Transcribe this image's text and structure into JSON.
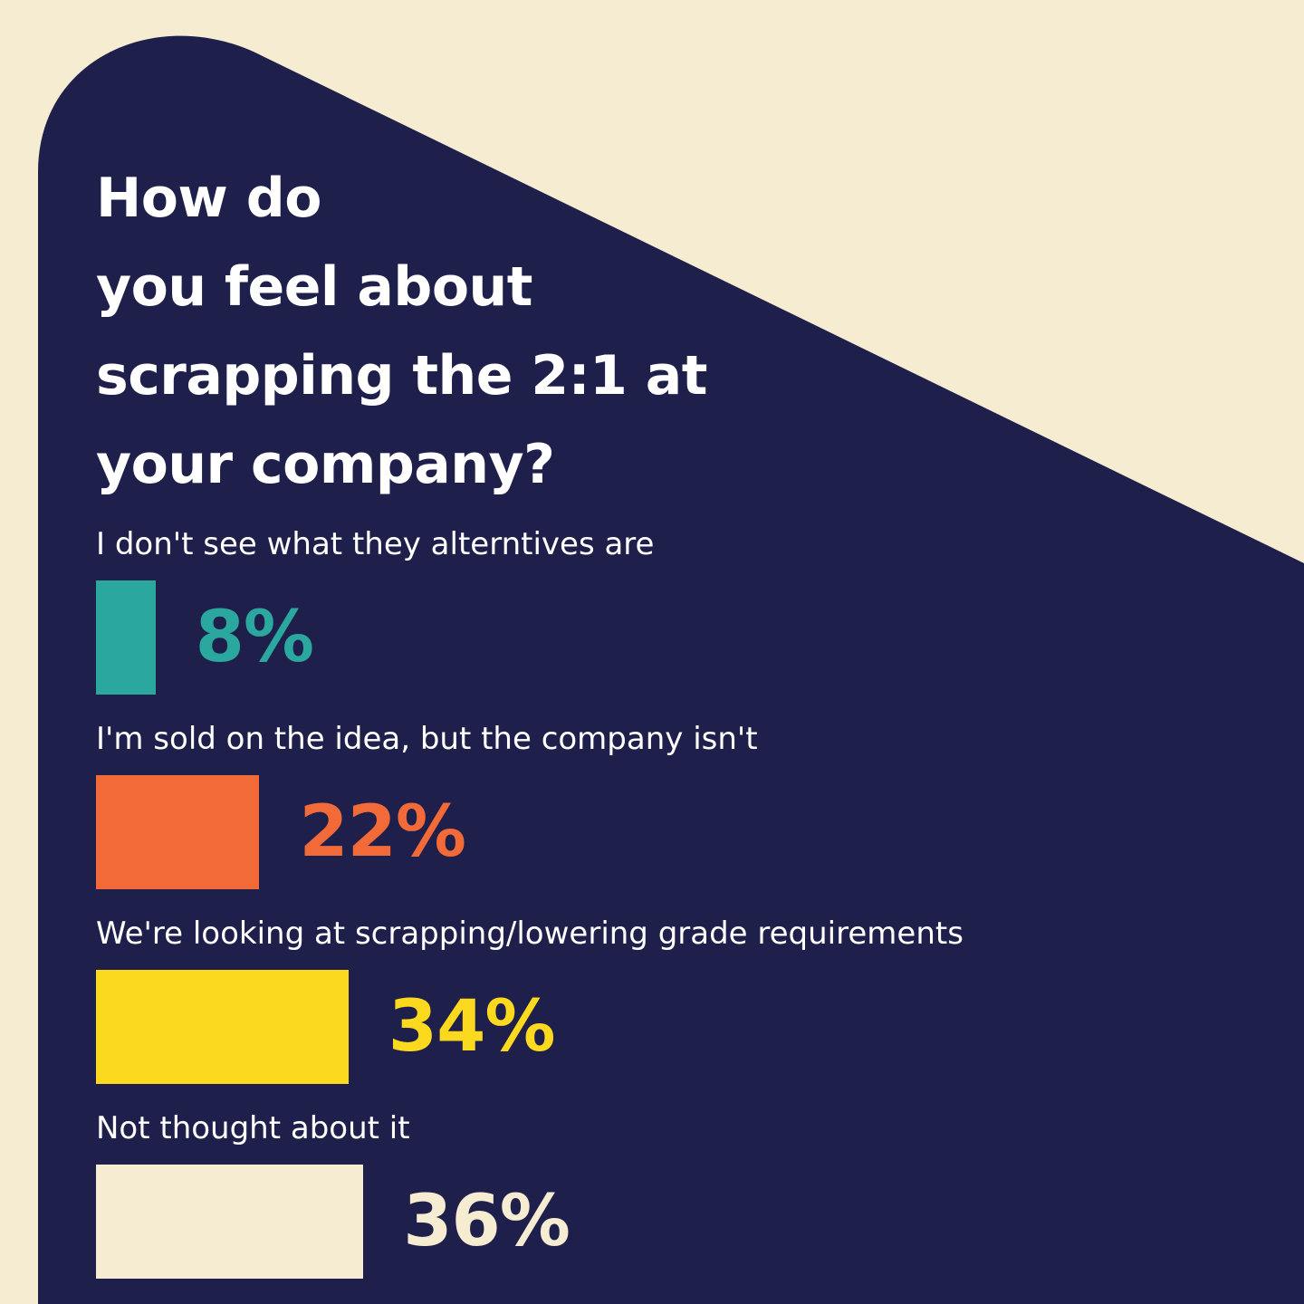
{
  "colors": {
    "background": "#f5ecd2",
    "panel": "#1f1f4b",
    "text": "#ffffff"
  },
  "title": {
    "lines": [
      "How do",
      "you feel about",
      "scrapping the 2:1 at",
      "your company?"
    ]
  },
  "chart_data": {
    "type": "bar",
    "orientation": "horizontal",
    "title": "How do you feel about scrapping the 2:1 at your company?",
    "categories": [
      "I don't see what they alterntives are",
      "I'm sold on the idea, but the company isn't",
      "We're looking at scrapping/lowering grade requirements",
      "Not thought about it"
    ],
    "values": [
      8,
      22,
      34,
      36
    ],
    "value_labels": [
      "8%",
      "22%",
      "34%",
      "36%"
    ],
    "colors": [
      "#2aa8a0",
      "#f26a38",
      "#fbd91f",
      "#f5ecd2"
    ],
    "unit": "%",
    "xlim": [
      0,
      100
    ],
    "grid": false,
    "legend": "none"
  }
}
